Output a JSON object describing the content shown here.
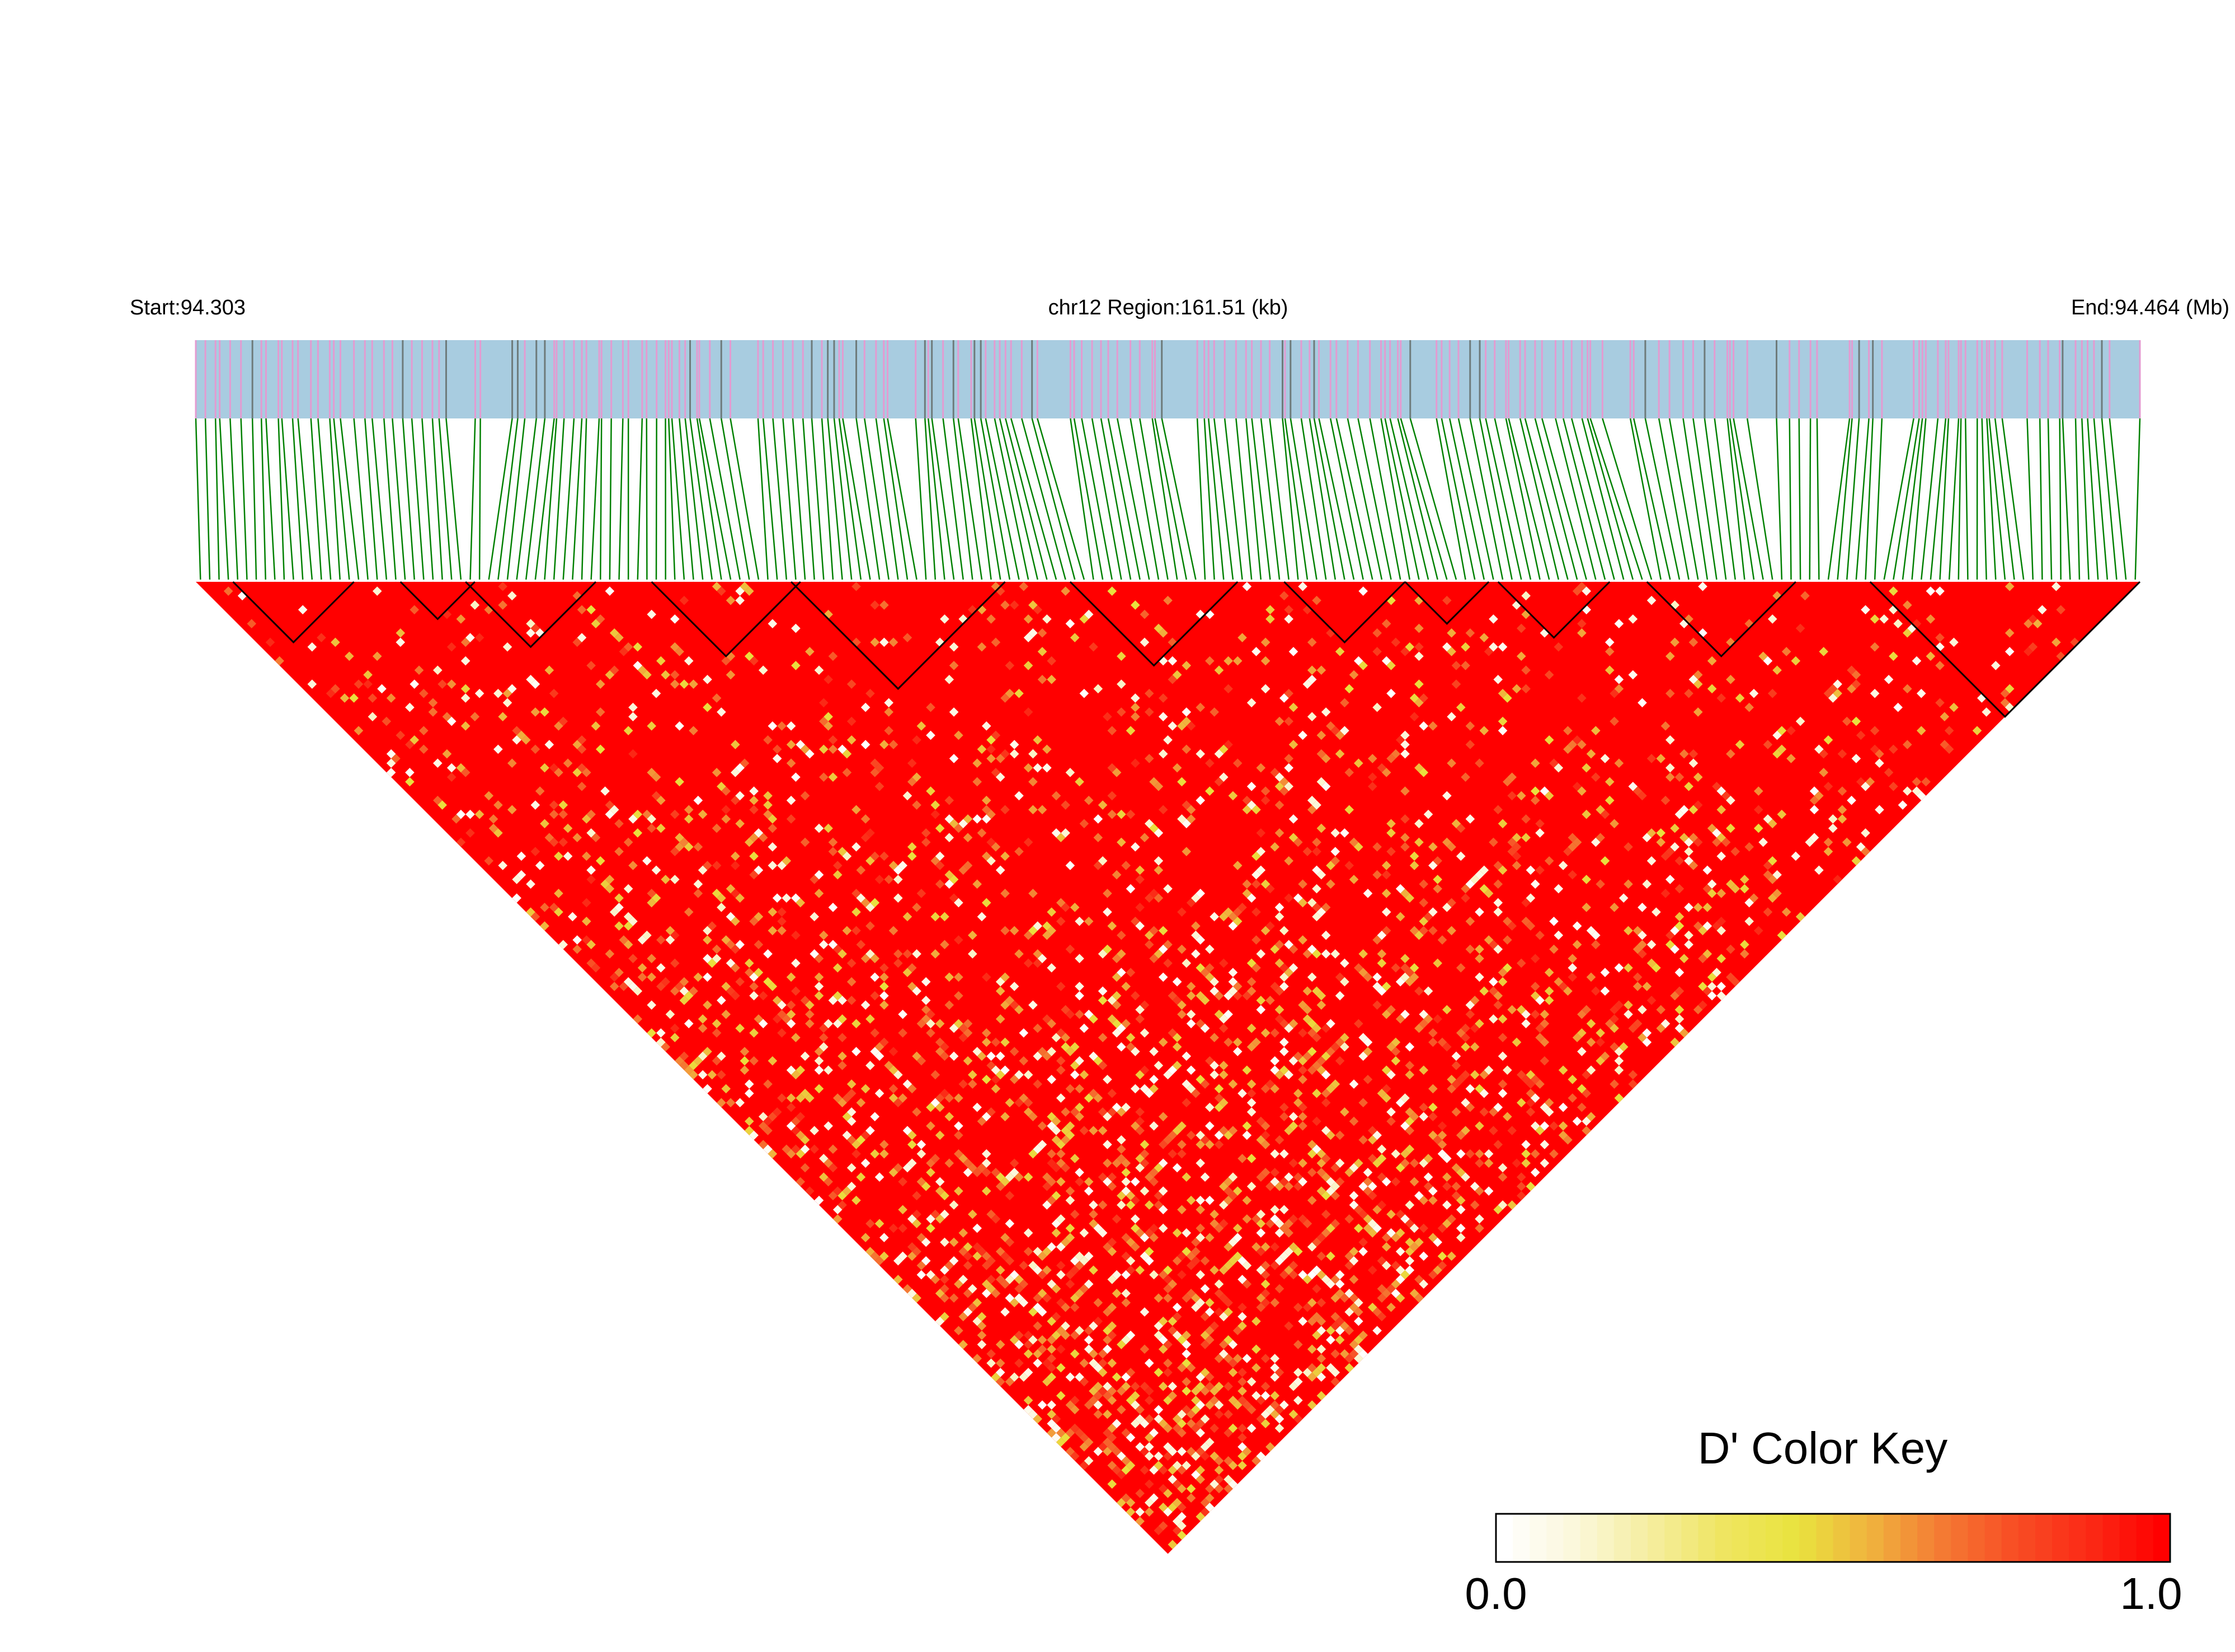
{
  "chart_data": {
    "type": "heatmap",
    "chromosome": "chr12",
    "header": {
      "start_label": "Start:94.303",
      "region_label": "chr12 Region:161.51 (kb)",
      "end_label": "End:94.464 (Mb)"
    },
    "start_mb": 94.303,
    "end_mb": 94.464,
    "region_kb": 161.51,
    "n_snps": 209,
    "pair_value_default": 1.0,
    "low_ld_pairs_note": "low-D' pairs are drawn as white/yellow/orange cells",
    "ld_blocks": [
      {
        "first_snp": 5,
        "last_snp": 17
      },
      {
        "first_snp": 23,
        "last_snp": 30
      },
      {
        "first_snp": 30,
        "last_snp": 43
      },
      {
        "first_snp": 50,
        "last_snp": 65
      },
      {
        "first_snp": 65,
        "last_snp": 87
      },
      {
        "first_snp": 95,
        "last_snp": 112
      },
      {
        "first_snp": 118,
        "last_snp": 130
      },
      {
        "first_snp": 131,
        "last_snp": 139
      },
      {
        "first_snp": 141,
        "last_snp": 152
      },
      {
        "first_snp": 157,
        "last_snp": 172
      },
      {
        "first_snp": 181,
        "last_snp": 209
      }
    ],
    "color_key": {
      "title": "D' Color Key",
      "min_label": "0.0",
      "max_label": "1.0",
      "colors": [
        "#ffffff",
        "#fbf7d9",
        "#f5ee9f",
        "#efe561",
        "#e9e33e",
        "#f0b33e",
        "#f47a33",
        "#f84d24",
        "#fb2a16",
        "#ff0000"
      ]
    },
    "colors": {
      "track_bg": "#a8cce0",
      "snp_tick_pink": "#e39bd1",
      "snp_tick_gray": "#6e7b7b",
      "connector": "#008000",
      "high_ld": "#ff0000",
      "block_outline": "#000000"
    }
  }
}
